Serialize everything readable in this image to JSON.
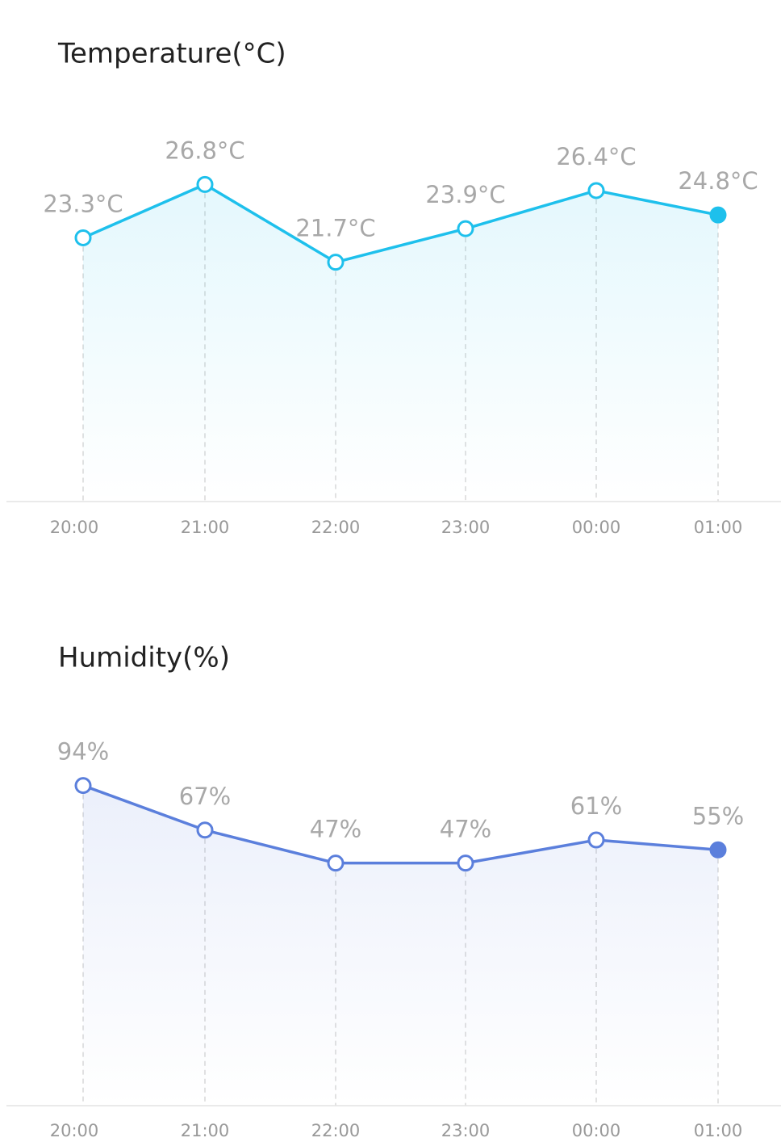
{
  "chart_data": [
    {
      "type": "line",
      "title": "Temperature(°C)",
      "categories": [
        "20:00",
        "21:00",
        "22:00",
        "23:00",
        "00:00",
        "01:00"
      ],
      "values": [
        23.3,
        26.8,
        21.7,
        23.9,
        26.4,
        24.8
      ],
      "value_labels": [
        "23.3°C",
        "26.8°C",
        "21.7°C",
        "23.9°C",
        "26.4°C",
        "24.8°C"
      ],
      "color": "#1ec0ec",
      "ylim": [
        6,
        30
      ]
    },
    {
      "type": "line",
      "title": "Humidity(%)",
      "categories": [
        "20:00",
        "21:00",
        "22:00",
        "23:00",
        "00:00",
        "01:00"
      ],
      "values": [
        94,
        67,
        47,
        47,
        61,
        55
      ],
      "value_labels": [
        "94%",
        "67%",
        "47%",
        "47%",
        "61%",
        "55%"
      ],
      "color": "#5b7fdc",
      "ylim": [
        -100,
        120
      ]
    }
  ]
}
